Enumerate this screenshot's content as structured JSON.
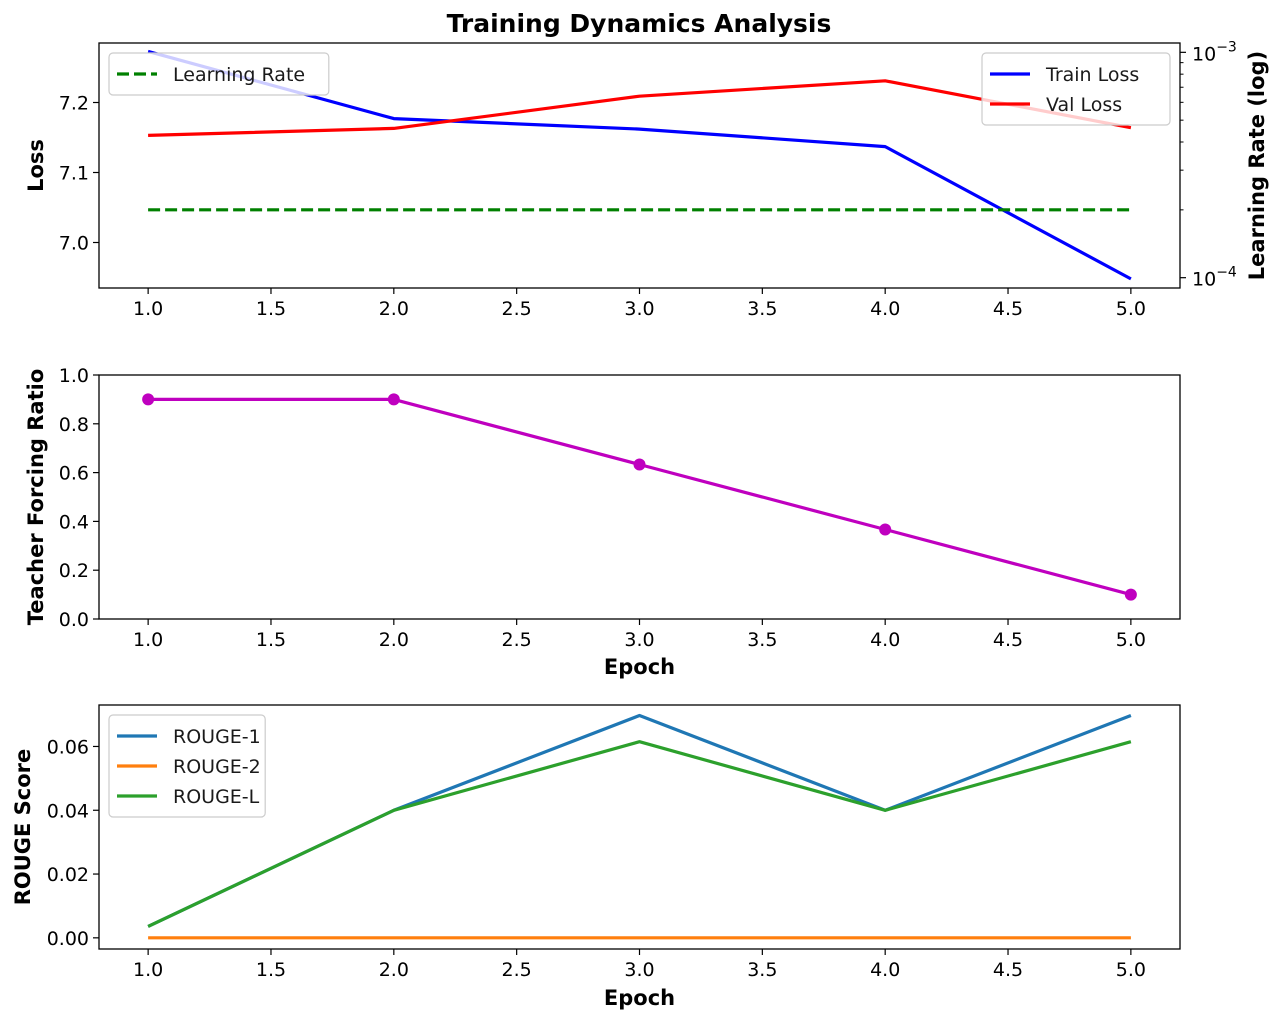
{
  "figure_title": "Training Dynamics Analysis",
  "chart_data": [
    {
      "type": "line",
      "ylabel": "Loss",
      "y2label": "Learning Rate (log)",
      "x": [
        1,
        2,
        3,
        4,
        5
      ],
      "xlim": [
        0.8,
        5.2
      ],
      "ylim": [
        6.935,
        7.285
      ],
      "y2lim": [
        9e-05,
        0.0011
      ],
      "y2scale": "log",
      "xticks": [
        "1.0",
        "1.5",
        "2.0",
        "2.5",
        "3.0",
        "3.5",
        "4.0",
        "4.5",
        "5.0"
      ],
      "yticks": [
        "7.0",
        "7.1",
        "7.2"
      ],
      "y2ticks": [
        {
          "base": "10",
          "exp": "−3",
          "value": 0.001
        },
        {
          "base": "10",
          "exp": "−4",
          "value": 0.0001
        }
      ],
      "series": [
        {
          "name": "Train Loss",
          "axis": "left",
          "color": "#0000ff",
          "style": "solid",
          "values": [
            7.273,
            7.177,
            7.162,
            7.137,
            6.948
          ]
        },
        {
          "name": "Val Loss",
          "axis": "left",
          "color": "#ff0000",
          "style": "solid",
          "values": [
            7.153,
            7.163,
            7.209,
            7.231,
            7.164
          ]
        },
        {
          "name": "Learning Rate",
          "axis": "right",
          "color": "#008000",
          "style": "dashed",
          "values": [
            0.0002,
            0.0002,
            0.0002,
            0.0002,
            0.0002
          ]
        }
      ],
      "legends": [
        {
          "position": "upper-left",
          "entries": [
            "Learning Rate"
          ]
        },
        {
          "position": "upper-right",
          "entries": [
            "Train Loss",
            "Val Loss"
          ]
        }
      ],
      "grid": false
    },
    {
      "type": "line",
      "xlabel": "Epoch",
      "ylabel": "Teacher Forcing Ratio",
      "x": [
        1,
        2,
        3,
        4,
        5
      ],
      "xlim": [
        0.8,
        5.2
      ],
      "ylim": [
        0,
        1
      ],
      "xticks": [
        "1.0",
        "1.5",
        "2.0",
        "2.5",
        "3.0",
        "3.5",
        "4.0",
        "4.5",
        "5.0"
      ],
      "yticks": [
        "0.0",
        "0.2",
        "0.4",
        "0.6",
        "0.8",
        "1.0"
      ],
      "series": [
        {
          "color": "#bf00bf",
          "style": "solid",
          "markers": true,
          "values": [
            0.9,
            0.9,
            0.633,
            0.367,
            0.1
          ]
        }
      ],
      "grid": false
    },
    {
      "type": "line",
      "xlabel": "Epoch",
      "ylabel": "ROUGE Score",
      "x": [
        1,
        2,
        3,
        4,
        5
      ],
      "xlim": [
        0.8,
        5.2
      ],
      "ylim": [
        -0.0035,
        0.073
      ],
      "xticks": [
        "1.0",
        "1.5",
        "2.0",
        "2.5",
        "3.0",
        "3.5",
        "4.0",
        "4.5",
        "5.0"
      ],
      "yticks": [
        "0.00",
        "0.02",
        "0.04",
        "0.06"
      ],
      "series": [
        {
          "name": "ROUGE-1",
          "color": "#1f77b4",
          "style": "solid",
          "values": [
            0.0036,
            0.04,
            0.0697,
            0.04,
            0.0697
          ]
        },
        {
          "name": "ROUGE-2",
          "color": "#ff7f0e",
          "style": "solid",
          "values": [
            0,
            0,
            0,
            0,
            0
          ]
        },
        {
          "name": "ROUGE-L",
          "color": "#2ca02c",
          "style": "solid",
          "values": [
            0.0036,
            0.04,
            0.0615,
            0.04,
            0.0615
          ]
        }
      ],
      "legends": [
        {
          "position": "upper-left",
          "entries": [
            "ROUGE-1",
            "ROUGE-2",
            "ROUGE-L"
          ]
        }
      ],
      "grid": false
    }
  ]
}
